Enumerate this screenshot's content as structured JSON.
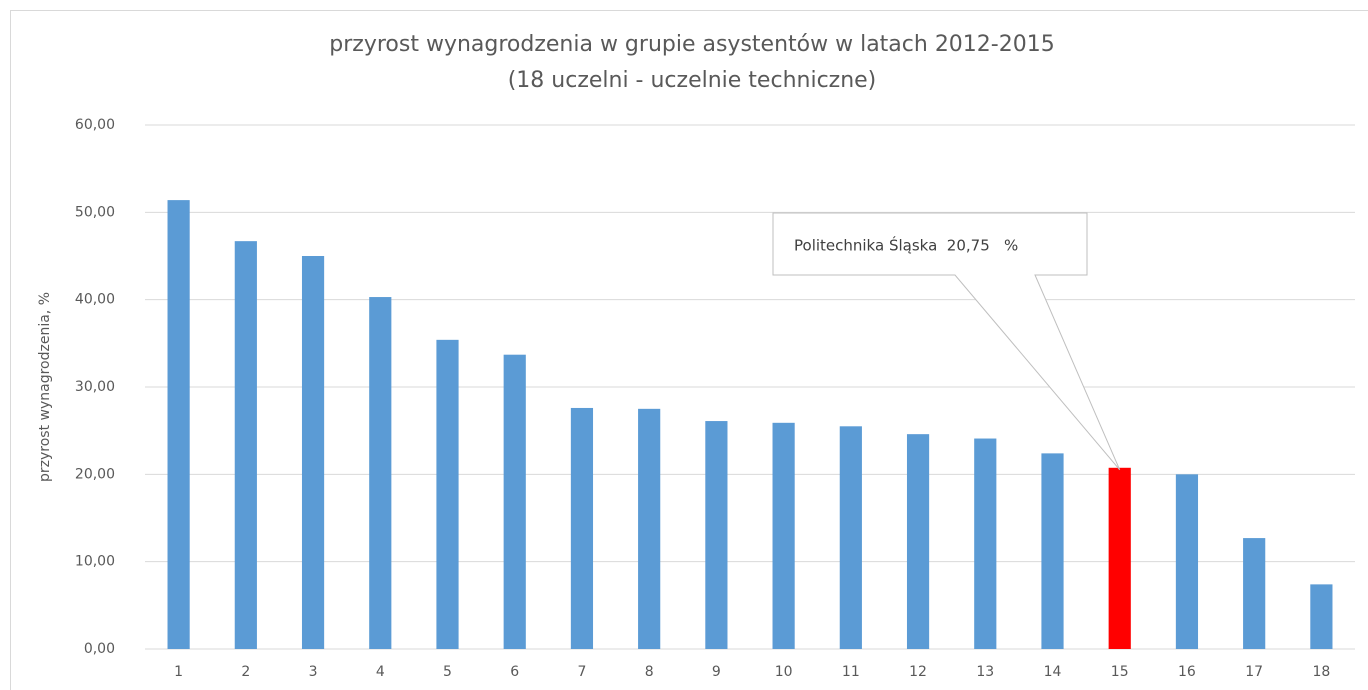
{
  "chart_data": {
    "type": "bar",
    "title": "przyrost wynagrodzenia w grupie asystentów w latach 2012-2015",
    "subtitle": "(18 uczelni - uczelnie techniczne)",
    "y_label": "przyrost wynagrodzenia, %",
    "categories": [
      "1",
      "2",
      "3",
      "4",
      "5",
      "6",
      "7",
      "8",
      "9",
      "10",
      "11",
      "12",
      "13",
      "14",
      "15",
      "16",
      "17",
      "18"
    ],
    "values": [
      51.4,
      46.7,
      45.0,
      40.3,
      35.4,
      33.7,
      27.6,
      27.5,
      26.1,
      25.9,
      25.5,
      24.6,
      24.1,
      22.4,
      20.75,
      20.0,
      12.7,
      7.4
    ],
    "colors": [
      "#5b9bd5",
      "#5b9bd5",
      "#5b9bd5",
      "#5b9bd5",
      "#5b9bd5",
      "#5b9bd5",
      "#5b9bd5",
      "#5b9bd5",
      "#5b9bd5",
      "#5b9bd5",
      "#5b9bd5",
      "#5b9bd5",
      "#5b9bd5",
      "#5b9bd5",
      "#ff0000",
      "#5b9bd5",
      "#5b9bd5",
      "#5b9bd5"
    ],
    "annotation": "Politechnika Śląska  20,75   %",
    "ylim": [
      0,
      60
    ],
    "yticks": [
      {
        "value": 0,
        "label": "0,00"
      },
      {
        "value": 10,
        "label": "10,00"
      },
      {
        "value": 20,
        "label": "20,00"
      },
      {
        "value": 30,
        "label": "30,00"
      },
      {
        "value": 40,
        "label": "40,00"
      },
      {
        "value": 50,
        "label": "50,00"
      },
      {
        "value": 60,
        "label": "60,00"
      }
    ],
    "grid": true
  }
}
